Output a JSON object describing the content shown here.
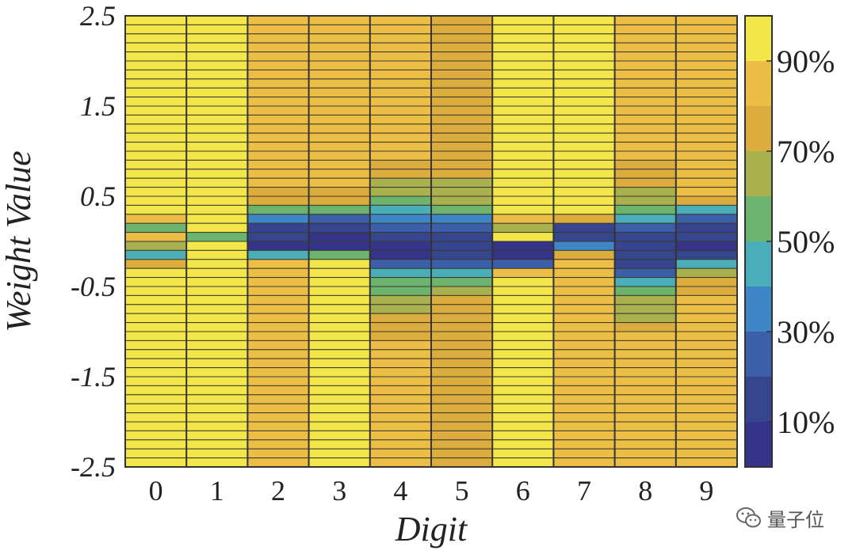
{
  "chart_data": {
    "type": "heatmap",
    "title": "",
    "xlabel": "Digit",
    "ylabel": "Weight Value",
    "categories": [
      "0",
      "1",
      "2",
      "3",
      "4",
      "5",
      "6",
      "7",
      "8",
      "9"
    ],
    "ylim": [
      -2.5,
      2.5
    ],
    "yticks": [
      "2.5",
      "1.5",
      "0.5",
      "-0.5",
      "-1.5",
      "-2.5"
    ],
    "ytick_values": [
      2.5,
      1.5,
      0.5,
      -0.5,
      -1.5,
      -2.5
    ],
    "bins_per_column": 50,
    "colorbar": {
      "range": [
        0,
        100
      ],
      "levels": 10,
      "tick_labels": [
        "90%",
        "70%",
        "50%",
        "30%",
        "10%"
      ],
      "tick_values": [
        90,
        70,
        50,
        30,
        10
      ],
      "colors": [
        "#35348a",
        "#35458e",
        "#3b5fa8",
        "#3f86c8",
        "#4aaeb8",
        "#6cb36e",
        "#a8b14e",
        "#dcad3e",
        "#edbe45",
        "#f2e64a"
      ]
    },
    "series": [
      {
        "name": "0",
        "profile": [
          [
            2.5,
            96
          ],
          [
            0.3,
            96
          ],
          [
            0.22,
            85
          ],
          [
            0.12,
            45
          ],
          [
            0.02,
            96
          ],
          [
            -0.12,
            35
          ],
          [
            -0.2,
            65
          ],
          [
            -0.3,
            85
          ],
          [
            -0.35,
            94
          ],
          [
            -2.5,
            94
          ]
        ]
      },
      {
        "name": "1",
        "profile": [
          [
            2.5,
            96
          ],
          [
            0.12,
            96
          ],
          [
            0.04,
            45
          ],
          [
            -0.02,
            96
          ],
          [
            -2.5,
            96
          ]
        ]
      },
      {
        "name": "2",
        "profile": [
          [
            2.5,
            82
          ],
          [
            1.8,
            86
          ],
          [
            1.0,
            86
          ],
          [
            0.6,
            84
          ],
          [
            0.45,
            70
          ],
          [
            0.32,
            55
          ],
          [
            0.22,
            25
          ],
          [
            0.0,
            8
          ],
          [
            -0.1,
            8
          ],
          [
            -0.2,
            84
          ],
          [
            -1.0,
            86
          ],
          [
            -2.5,
            86
          ]
        ]
      },
      {
        "name": "3",
        "profile": [
          [
            2.5,
            84
          ],
          [
            1.5,
            84
          ],
          [
            0.7,
            82
          ],
          [
            0.45,
            75
          ],
          [
            0.32,
            50
          ],
          [
            0.22,
            12
          ],
          [
            0.0,
            8
          ],
          [
            -0.1,
            8
          ],
          [
            -0.2,
            95
          ],
          [
            -0.45,
            95
          ],
          [
            -1.0,
            92
          ],
          [
            -2.5,
            92
          ]
        ]
      },
      {
        "name": "4",
        "profile": [
          [
            2.5,
            80
          ],
          [
            1.5,
            82
          ],
          [
            0.9,
            84
          ],
          [
            0.75,
            70
          ],
          [
            0.55,
            62
          ],
          [
            0.45,
            58
          ],
          [
            0.3,
            45
          ],
          [
            0.15,
            25
          ],
          [
            -0.05,
            8
          ],
          [
            -0.2,
            8
          ],
          [
            -0.3,
            35
          ],
          [
            -0.45,
            58
          ],
          [
            -0.7,
            62
          ],
          [
            -0.9,
            75
          ],
          [
            -1.2,
            82
          ],
          [
            -2.5,
            82
          ]
        ]
      },
      {
        "name": "5",
        "profile": [
          [
            2.5,
            78
          ],
          [
            1.5,
            78
          ],
          [
            0.9,
            76
          ],
          [
            0.45,
            62
          ],
          [
            0.3,
            45
          ],
          [
            0.1,
            20
          ],
          [
            -0.1,
            8
          ],
          [
            -0.25,
            20
          ],
          [
            -0.35,
            42
          ],
          [
            -0.5,
            58
          ],
          [
            -0.7,
            75
          ],
          [
            -1.5,
            80
          ],
          [
            -2.0,
            78
          ],
          [
            -2.5,
            76
          ]
        ]
      },
      {
        "name": "6",
        "profile": [
          [
            2.5,
            96
          ],
          [
            0.35,
            96
          ],
          [
            0.15,
            68
          ],
          [
            0.05,
            95
          ],
          [
            -0.05,
            8
          ],
          [
            -0.22,
            8
          ],
          [
            -0.3,
            45
          ],
          [
            -0.35,
            86
          ],
          [
            -0.5,
            95
          ],
          [
            -2.5,
            95
          ]
        ]
      },
      {
        "name": "7",
        "profile": [
          [
            2.5,
            97
          ],
          [
            0.3,
            97
          ],
          [
            0.22,
            60
          ],
          [
            0.15,
            20
          ],
          [
            0.0,
            8
          ],
          [
            -0.12,
            65
          ],
          [
            -0.25,
            88
          ],
          [
            -0.6,
            86
          ],
          [
            -2.5,
            86
          ]
        ]
      },
      {
        "name": "8",
        "profile": [
          [
            2.5,
            82
          ],
          [
            1.0,
            82
          ],
          [
            0.75,
            75
          ],
          [
            0.55,
            66
          ],
          [
            0.4,
            60
          ],
          [
            0.3,
            50
          ],
          [
            0.15,
            25
          ],
          [
            -0.05,
            12
          ],
          [
            -0.3,
            20
          ],
          [
            -0.45,
            48
          ],
          [
            -0.6,
            60
          ],
          [
            -0.8,
            65
          ],
          [
            -1.0,
            80
          ],
          [
            -1.3,
            86
          ],
          [
            -2.5,
            84
          ]
        ]
      },
      {
        "name": "9",
        "profile": [
          [
            2.5,
            86
          ],
          [
            0.5,
            86
          ],
          [
            0.4,
            62
          ],
          [
            0.32,
            40
          ],
          [
            0.22,
            20
          ],
          [
            0.0,
            8
          ],
          [
            -0.15,
            12
          ],
          [
            -0.25,
            48
          ],
          [
            -0.35,
            62
          ],
          [
            -0.45,
            78
          ],
          [
            -1.0,
            86
          ],
          [
            -2.5,
            86
          ]
        ]
      }
    ]
  },
  "watermark": {
    "icon": "wechat-icon",
    "text": "量子位"
  }
}
